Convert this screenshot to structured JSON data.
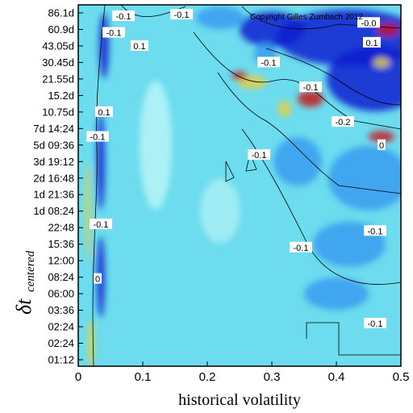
{
  "chart_data": {
    "type": "heatmap",
    "copyright": "Copyright Gilles Zumbach 2012",
    "xlabel": "historical volatility",
    "ylabel_main": "δt",
    "ylabel_sub": "centered",
    "xlim": [
      0,
      0.5
    ],
    "x_ticks": [
      {
        "value": 0,
        "label": "0"
      },
      {
        "value": 0.1,
        "label": "0.1"
      },
      {
        "value": 0.2,
        "label": "0.2"
      },
      {
        "value": 0.3,
        "label": "0.3"
      },
      {
        "value": 0.4,
        "label": "0.4"
      },
      {
        "value": 0.5,
        "label": "0.5"
      }
    ],
    "y_ticks": [
      "86.1d",
      "60.9d",
      "43.05d",
      "30.45d",
      "21.55d",
      "15.2d",
      "10.75d",
      "7d 14:24",
      "5d 09:36",
      "3d 19:12",
      "2d 16:48",
      "1d 21:36",
      "1d 08:24",
      "22:48",
      "15:36",
      "12:00",
      "08:24",
      "06:00",
      "03:36",
      "02:24",
      "02:24",
      "01:12"
    ],
    "contour_labels": [
      {
        "text": "-0.1",
        "x": 0.07,
        "y_index": 0.2
      },
      {
        "text": "-0.1",
        "x": 0.055,
        "y_index": 1.2
      },
      {
        "text": "0.1",
        "x": 0.095,
        "y_index": 2.0
      },
      {
        "text": "-0.1",
        "x": 0.16,
        "y_index": 0.1
      },
      {
        "text": "-0.1",
        "x": 0.295,
        "y_index": 3.0
      },
      {
        "text": "-0.0",
        "x": 0.45,
        "y_index": 0.6
      },
      {
        "text": "0.1",
        "x": 0.455,
        "y_index": 1.8
      },
      {
        "text": "-0.1",
        "x": 0.36,
        "y_index": 4.5
      },
      {
        "text": "-0.2",
        "x": 0.41,
        "y_index": 6.6
      },
      {
        "text": "0",
        "x": 0.47,
        "y_index": 8.0
      },
      {
        "text": "-0.1",
        "x": 0.28,
        "y_index": 8.6
      },
      {
        "text": "-0.1",
        "x": 0.345,
        "y_index": 14.2
      },
      {
        "text": "-0.1",
        "x": 0.46,
        "y_index": 13.2
      },
      {
        "text": "-0.1",
        "x": 0.46,
        "y_index": 18.8
      },
      {
        "text": "0",
        "x": 0.03,
        "y_index": 16.1
      },
      {
        "text": "-0.1",
        "x": 0.035,
        "y_index": 12.8
      },
      {
        "text": "0.1",
        "x": 0.04,
        "y_index": 6.0
      },
      {
        "text": "-0.1",
        "x": 0.03,
        "y_index": 7.5
      }
    ],
    "colormap": {
      "low": "#0a1fd0",
      "mid_low": "#3a9cf0",
      "mid": "#5ee0ee",
      "high": "#e8d040",
      "max": "#c81818"
    },
    "grid": false
  }
}
